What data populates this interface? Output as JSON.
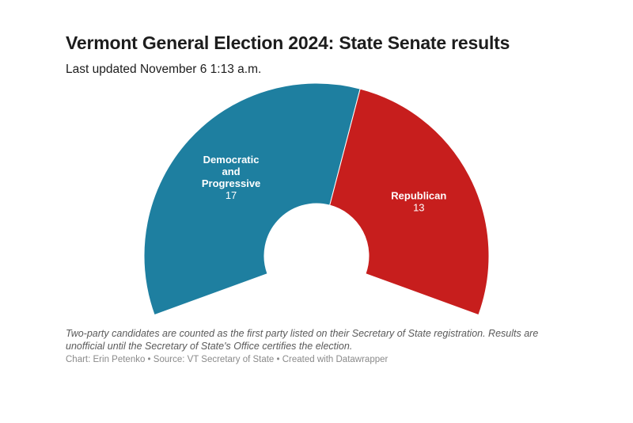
{
  "header": {
    "title": "Vermont General Election 2024: State Senate results",
    "subtitle": "Last updated November 6 1:13 a.m."
  },
  "chart_data": {
    "type": "pie",
    "variant": "half-donut",
    "series": [
      {
        "name": "Democratic and Progressive",
        "label_lines": [
          "Democratic",
          "and",
          "Progressive"
        ],
        "value": 17,
        "color": "#1e7fa0"
      },
      {
        "name": "Republican",
        "label_lines": [
          "Republican"
        ],
        "value": 13,
        "color": "#c71e1d"
      }
    ],
    "total": 30
  },
  "footer": {
    "notes": "Two-party candidates are counted as the first party listed on their Secretary of State registration. Results are unofficial until the Secretary of State's Office certifies the election.",
    "byline": "Chart: Erin Petenko • Source: VT Secretary of State • Created with Datawrapper"
  }
}
